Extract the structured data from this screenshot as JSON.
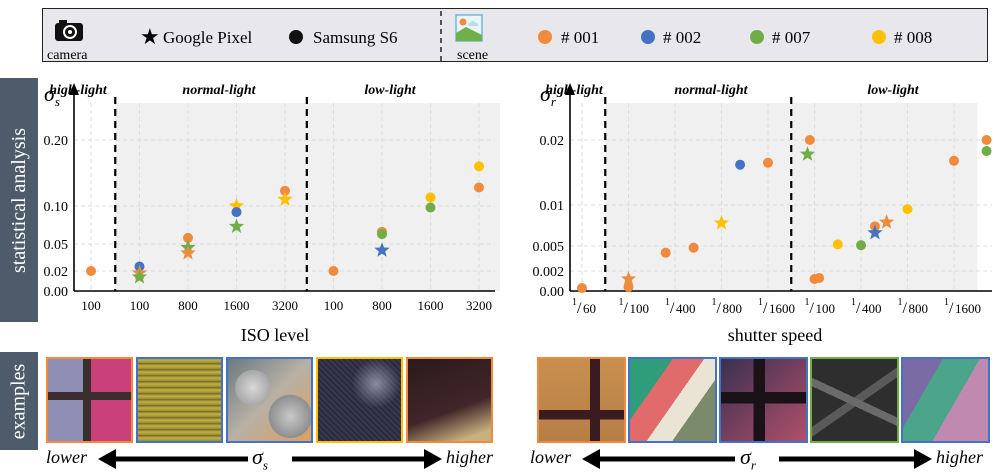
{
  "legend": {
    "camera_label": "camera",
    "scene_label": "scene",
    "devices": [
      {
        "name": "Google Pixel",
        "marker": "star"
      },
      {
        "name": "Samsung S6",
        "marker": "circle"
      }
    ],
    "scenes": [
      {
        "name": "# 001",
        "color": "#f08a3c"
      },
      {
        "name": "# 002",
        "color": "#4472c4"
      },
      {
        "name": "# 007",
        "color": "#70ad47"
      },
      {
        "name": "# 008",
        "color": "#ffc000"
      }
    ]
  },
  "row_labels": {
    "top": "statistical analysis",
    "bottom": "examples"
  },
  "chart_data": [
    {
      "type": "scatter",
      "ylabel": "σ_s",
      "xlabel": "ISO level",
      "y_ticks": [
        "0.00",
        "0.02",
        "0.05",
        "0.10",
        "0.20"
      ],
      "x_ticks": [
        "100",
        "100",
        "800",
        "1600",
        "3200",
        "100",
        "800",
        "1600",
        "3200"
      ],
      "region_labels": [
        "high-light",
        "normal-light",
        "low-light"
      ],
      "y_tick_values": [
        0.0,
        0.02,
        0.05,
        0.1,
        0.2
      ],
      "x_tick_slots": [
        0,
        1,
        2,
        3,
        4,
        5,
        6,
        7,
        8
      ],
      "region_bounds": [
        [
          -0.5,
          0.5
        ],
        [
          0.5,
          4.45
        ],
        [
          4.45,
          8.5
        ]
      ],
      "points": [
        {
          "slot": 0.0,
          "y": 0.02,
          "scene": "#001",
          "device": "circle"
        },
        {
          "slot": 1.0,
          "y": 0.025,
          "scene": "#002",
          "device": "circle"
        },
        {
          "slot": 1.0,
          "y": 0.018,
          "scene": "#001",
          "device": "star"
        },
        {
          "slot": 1.0,
          "y": 0.014,
          "scene": "#007",
          "device": "star"
        },
        {
          "slot": 2.0,
          "y": 0.058,
          "scene": "#001",
          "device": "circle"
        },
        {
          "slot": 2.0,
          "y": 0.046,
          "scene": "#007",
          "device": "star"
        },
        {
          "slot": 2.0,
          "y": 0.04,
          "scene": "#001",
          "device": "star"
        },
        {
          "slot": 3.0,
          "y": 0.1,
          "scene": "#008",
          "device": "star"
        },
        {
          "slot": 3.0,
          "y": 0.092,
          "scene": "#002",
          "device": "circle"
        },
        {
          "slot": 3.0,
          "y": 0.073,
          "scene": "#007",
          "device": "star"
        },
        {
          "slot": 4.0,
          "y": 0.123,
          "scene": "#001",
          "device": "circle"
        },
        {
          "slot": 4.0,
          "y": 0.11,
          "scene": "#008",
          "device": "star"
        },
        {
          "slot": 5.0,
          "y": 0.02,
          "scene": "#001",
          "device": "circle"
        },
        {
          "slot": 6.0,
          "y": 0.066,
          "scene": "#001",
          "device": "circle"
        },
        {
          "slot": 6.0,
          "y": 0.063,
          "scene": "#007",
          "device": "circle"
        },
        {
          "slot": 6.0,
          "y": 0.043,
          "scene": "#002",
          "device": "star"
        },
        {
          "slot": 7.0,
          "y": 0.113,
          "scene": "#008",
          "device": "circle"
        },
        {
          "slot": 7.0,
          "y": 0.098,
          "scene": "#007",
          "device": "circle"
        },
        {
          "slot": 8.0,
          "y": 0.16,
          "scene": "#008",
          "device": "circle"
        },
        {
          "slot": 8.0,
          "y": 0.128,
          "scene": "#001",
          "device": "circle"
        }
      ]
    },
    {
      "type": "scatter",
      "ylabel": "σ_r",
      "xlabel": "shutter speed",
      "y_ticks": [
        "0.00",
        "0.002",
        "0.005",
        "0.01",
        "0.02"
      ],
      "x_ticks": [
        "1/60",
        "1/100",
        "1/400",
        "1/800",
        "1/1600",
        "1/100",
        "1/400",
        "1/800",
        "1/1600"
      ],
      "region_labels": [
        "high-light",
        "normal-light",
        "low-light"
      ],
      "y_tick_values": [
        0.0,
        0.002,
        0.005,
        0.01,
        0.02
      ],
      "x_tick_slots": [
        0,
        1,
        2,
        3,
        4,
        5,
        6,
        7,
        8
      ],
      "region_bounds": [
        [
          -0.5,
          0.5
        ],
        [
          0.5,
          4.5
        ],
        [
          4.5,
          8.5
        ]
      ],
      "points": [
        {
          "slot": 0.0,
          "y": 0.0003,
          "scene": "#001",
          "device": "circle"
        },
        {
          "slot": 1.0,
          "y": 0.0012,
          "scene": "#001",
          "device": "star"
        },
        {
          "slot": 1.0,
          "y": 0.0004,
          "scene": "#001",
          "device": "circle"
        },
        {
          "slot": 1.8,
          "y": 0.0042,
          "scene": "#001",
          "device": "circle"
        },
        {
          "slot": 2.4,
          "y": 0.0048,
          "scene": "#001",
          "device": "circle"
        },
        {
          "slot": 3.0,
          "y": 0.0078,
          "scene": "#008",
          "device": "star"
        },
        {
          "slot": 3.4,
          "y": 0.0162,
          "scene": "#002",
          "device": "circle"
        },
        {
          "slot": 4.0,
          "y": 0.0165,
          "scene": "#001",
          "device": "circle"
        },
        {
          "slot": 4.9,
          "y": 0.0205,
          "scene": "#001",
          "device": "circle"
        },
        {
          "slot": 4.85,
          "y": 0.0178,
          "scene": "#007",
          "device": "star"
        },
        {
          "slot": 5.0,
          "y": 0.0012,
          "scene": "#001",
          "device": "circle"
        },
        {
          "slot": 5.1,
          "y": 0.0013,
          "scene": "#001",
          "device": "circle"
        },
        {
          "slot": 5.5,
          "y": 0.0052,
          "scene": "#008",
          "device": "circle"
        },
        {
          "slot": 6.0,
          "y": 0.0051,
          "scene": "#007",
          "device": "circle"
        },
        {
          "slot": 6.3,
          "y": 0.0074,
          "scene": "#001",
          "device": "circle"
        },
        {
          "slot": 6.3,
          "y": 0.0066,
          "scene": "#002",
          "device": "star"
        },
        {
          "slot": 6.55,
          "y": 0.0079,
          "scene": "#001",
          "device": "star"
        },
        {
          "slot": 7.0,
          "y": 0.0095,
          "scene": "#008",
          "device": "circle"
        },
        {
          "slot": 8.0,
          "y": 0.0168,
          "scene": "#001",
          "device": "circle"
        },
        {
          "slot": 8.7,
          "y": 0.0222,
          "scene": "#001",
          "device": "circle"
        },
        {
          "slot": 8.7,
          "y": 0.0183,
          "scene": "#007",
          "device": "circle"
        }
      ]
    }
  ],
  "examples": {
    "left": {
      "lower": "lower",
      "higher": "higher",
      "symbol": "σ_s",
      "thumbs": [
        {
          "border": "#f08a3c",
          "kind": "cross-color"
        },
        {
          "border": "#4472c4",
          "kind": "yellow-coil"
        },
        {
          "border": "#4472c4",
          "kind": "cylinders"
        },
        {
          "border": "#ffc000",
          "kind": "dark-fabric"
        },
        {
          "border": "#f08a3c",
          "kind": "dark-board"
        }
      ]
    },
    "right": {
      "lower": "lower",
      "higher": "higher",
      "symbol": "σ_r",
      "thumbs": [
        {
          "border": "#f08a3c",
          "kind": "cross-tan"
        },
        {
          "border": "#4472c4",
          "kind": "pencils"
        },
        {
          "border": "#4472c4",
          "kind": "cross-dark"
        },
        {
          "border": "#70ad47",
          "kind": "dark-cross-grid"
        },
        {
          "border": "#4472c4",
          "kind": "noisy-pencils"
        }
      ]
    }
  }
}
